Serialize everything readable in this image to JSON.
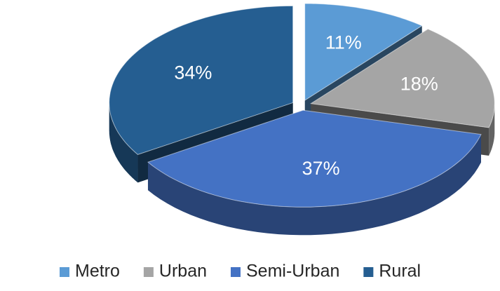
{
  "chart_data": {
    "type": "pie3d",
    "categories": [
      "Metro",
      "Urban",
      "Semi-Urban",
      "Rural"
    ],
    "values": [
      11,
      18,
      37,
      34
    ],
    "value_labels": [
      "11%",
      "18%",
      "37%",
      "34%"
    ],
    "colors": [
      "#5b9bd5",
      "#a5a5a5",
      "#4472c4",
      "#255e91"
    ],
    "legend": "bottom"
  }
}
